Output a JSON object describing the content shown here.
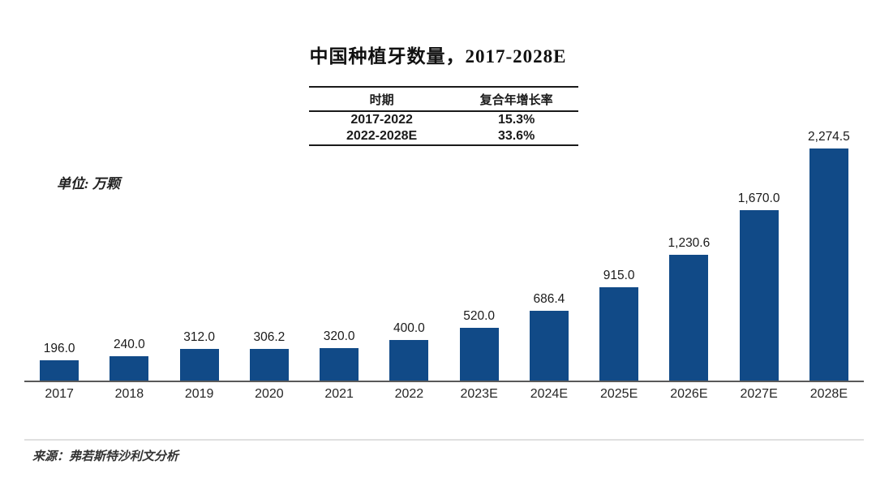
{
  "title": "中国种植牙数量，2017-2028E",
  "unit_label": "单位: 万颗",
  "source_note": "来源：弗若斯特沙利文分析",
  "cagr_table": {
    "headers": [
      "时期",
      "复合年增长率"
    ],
    "rows": [
      [
        "2017-2022",
        "15.3%"
      ],
      [
        "2022-2028E",
        "33.6%"
      ]
    ]
  },
  "chart_data": {
    "type": "bar",
    "title": "中国种植牙数量，2017-2028E",
    "unit": "万颗",
    "categories": [
      "2017",
      "2018",
      "2019",
      "2020",
      "2021",
      "2022",
      "2023E",
      "2024E",
      "2025E",
      "2026E",
      "2027E",
      "2028E"
    ],
    "values": [
      196.0,
      240.0,
      312.0,
      306.2,
      320.0,
      400.0,
      520.0,
      686.4,
      915.0,
      1230.6,
      1670.0,
      2274.5
    ],
    "value_labels": [
      "196.0",
      "240.0",
      "312.0",
      "306.2",
      "320.0",
      "400.0",
      "520.0",
      "686.4",
      "915.0",
      "1,230.6",
      "1,670.0",
      "2,274.5"
    ],
    "xlabel": "",
    "ylabel": "万颗",
    "ylim": [
      0,
      2400
    ],
    "grid": false,
    "legend": false,
    "bar_color": "#114A87",
    "axis_color": "#595959"
  }
}
